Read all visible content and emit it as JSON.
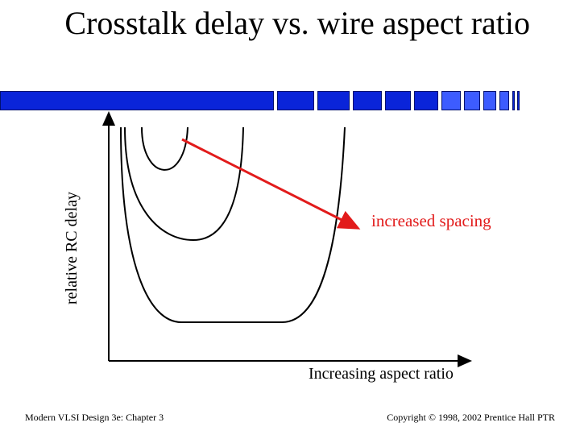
{
  "slide": {
    "title": "Crosstalk delay vs. wire aspect ratio",
    "title_color": "#000000",
    "accent_bar_color": "#0a24d9"
  },
  "diagram": {
    "y_axis_label": "relative RC delay",
    "x_axis_label": "Increasing aspect ratio",
    "arrow_label": "increased spacing",
    "arrow_color": "#e21b1b",
    "curves": [
      "narrow curve",
      "middle curve",
      "wide curve"
    ]
  },
  "footer": {
    "left": "Modern VLSI Design 3e: Chapter 3",
    "right": "Copyright © 1998, 2002 Prentice Hall PTR"
  }
}
